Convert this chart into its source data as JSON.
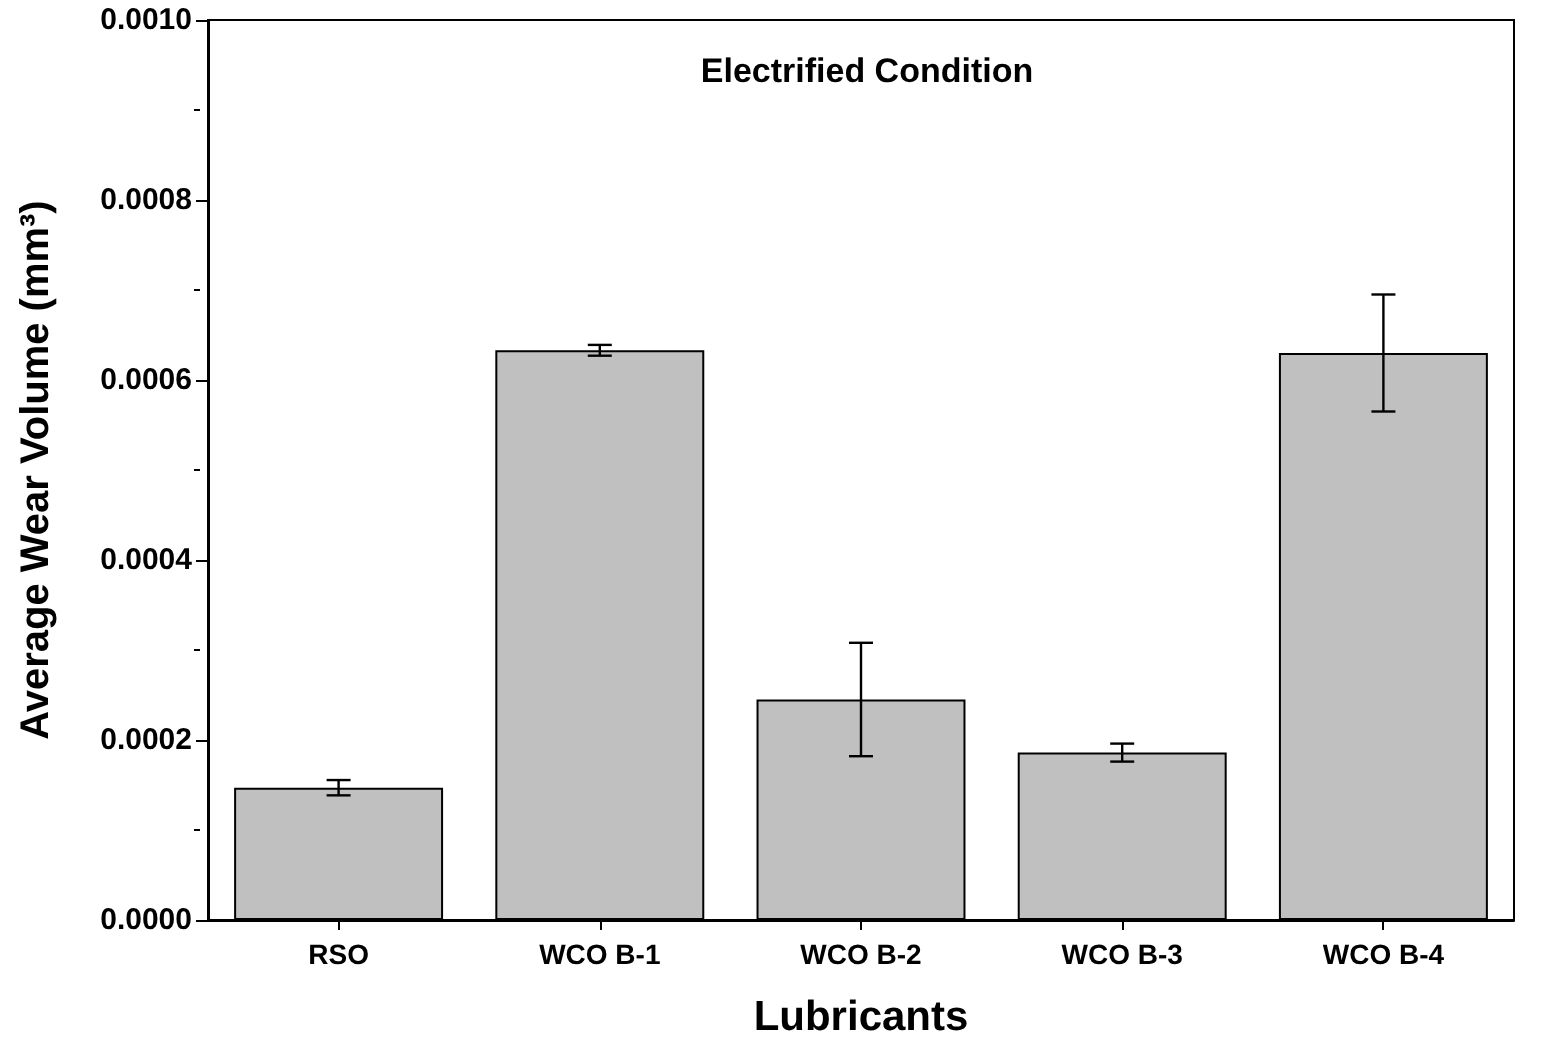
{
  "chart_data": {
    "type": "bar",
    "title": "Electrified Condition",
    "xlabel": "Lubricants",
    "ylabel": "Average Wear Volume (mm³)",
    "categories": [
      "RSO",
      "WCO B-1",
      "WCO B-2",
      "WCO B-3",
      "WCO B-4"
    ],
    "values": [
      0.000147,
      0.000633,
      0.000245,
      0.000186,
      0.00063
    ],
    "errors": [
      8.5e-06,
      6e-06,
      6.3e-05,
      1e-05,
      6.5e-05
    ],
    "color": "#c0c0c0",
    "ylim": [
      0,
      0.001
    ],
    "yticks": [
      {
        "value": 0,
        "label": "0.0000"
      },
      {
        "value": 0.0002,
        "label": "0.0002"
      },
      {
        "value": 0.0004,
        "label": "0.0004"
      },
      {
        "value": 0.0006,
        "label": "0.0006"
      },
      {
        "value": 0.0008,
        "label": "0.0008"
      },
      {
        "value": 0.001,
        "label": "0.0010"
      }
    ],
    "grid": false
  }
}
